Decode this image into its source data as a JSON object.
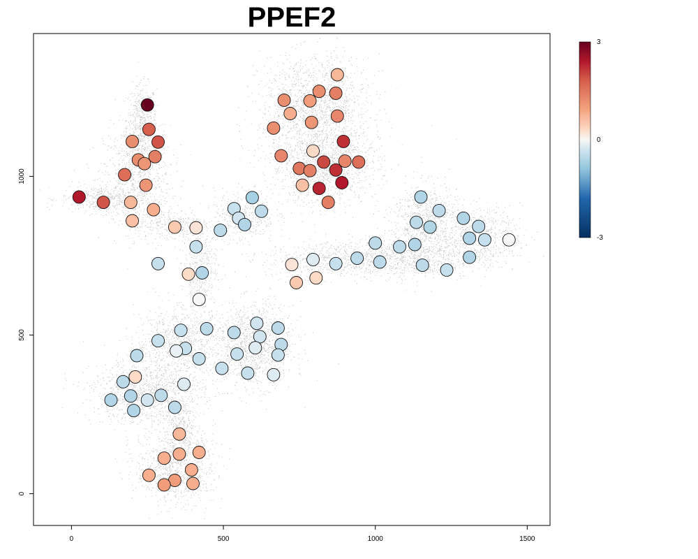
{
  "chart_data": {
    "type": "scatter",
    "title": "PPEF2",
    "xlabel": "",
    "ylabel": "",
    "xlim": [
      -125,
      1575
    ],
    "ylim": [
      -100,
      1450
    ],
    "xticks": [
      0,
      500,
      1000,
      1500
    ],
    "yticks": [
      0,
      500,
      1000
    ],
    "grid": false,
    "colorbar": {
      "min": -3,
      "max": 3,
      "ticks": [
        3,
        0,
        -3
      ],
      "low_color": "#053061",
      "mid_color": "#f7f7f7",
      "high_color": "#67001f"
    },
    "background_points_color": "#c8c8c8",
    "series": [
      {
        "points": [
          {
            "x": 250,
            "y": 1225,
            "value": 3.0
          },
          {
            "x": 25,
            "y": 935,
            "value": 2.4
          },
          {
            "x": 105,
            "y": 918,
            "value": 1.9
          },
          {
            "x": 255,
            "y": 1148,
            "value": 1.8
          },
          {
            "x": 285,
            "y": 1108,
            "value": 1.9
          },
          {
            "x": 200,
            "y": 1110,
            "value": 1.2
          },
          {
            "x": 275,
            "y": 1062,
            "value": 1.4
          },
          {
            "x": 220,
            "y": 1052,
            "value": 1.2
          },
          {
            "x": 240,
            "y": 1040,
            "value": 1.1
          },
          {
            "x": 175,
            "y": 1005,
            "value": 1.6
          },
          {
            "x": 245,
            "y": 972,
            "value": 1.1
          },
          {
            "x": 195,
            "y": 918,
            "value": 0.7
          },
          {
            "x": 270,
            "y": 895,
            "value": 0.8
          },
          {
            "x": 200,
            "y": 860,
            "value": 0.6
          },
          {
            "x": 340,
            "y": 840,
            "value": 0.5
          },
          {
            "x": 410,
            "y": 838,
            "value": 0.2
          },
          {
            "x": 490,
            "y": 830,
            "value": -0.5
          },
          {
            "x": 410,
            "y": 778,
            "value": -0.4
          },
          {
            "x": 285,
            "y": 725,
            "value": -0.4
          },
          {
            "x": 385,
            "y": 692,
            "value": 0.3
          },
          {
            "x": 430,
            "y": 696,
            "value": -0.6
          },
          {
            "x": 420,
            "y": 612,
            "value": 0.0
          },
          {
            "x": 595,
            "y": 933,
            "value": -0.7
          },
          {
            "x": 535,
            "y": 898,
            "value": -0.4
          },
          {
            "x": 550,
            "y": 868,
            "value": -0.3
          },
          {
            "x": 570,
            "y": 848,
            "value": -0.6
          },
          {
            "x": 625,
            "y": 890,
            "value": -0.5
          },
          {
            "x": 875,
            "y": 1320,
            "value": 0.7
          },
          {
            "x": 700,
            "y": 1240,
            "value": 1.2
          },
          {
            "x": 815,
            "y": 1268,
            "value": 1.2
          },
          {
            "x": 870,
            "y": 1262,
            "value": 1.4
          },
          {
            "x": 720,
            "y": 1198,
            "value": 0.8
          },
          {
            "x": 785,
            "y": 1238,
            "value": 1.0
          },
          {
            "x": 875,
            "y": 1190,
            "value": 1.3
          },
          {
            "x": 665,
            "y": 1152,
            "value": 1.2
          },
          {
            "x": 790,
            "y": 1170,
            "value": 1.1
          },
          {
            "x": 895,
            "y": 1110,
            "value": 2.2
          },
          {
            "x": 690,
            "y": 1065,
            "value": 1.3
          },
          {
            "x": 795,
            "y": 1080,
            "value": 0.3
          },
          {
            "x": 830,
            "y": 1045,
            "value": 2.0
          },
          {
            "x": 900,
            "y": 1048,
            "value": 1.3
          },
          {
            "x": 945,
            "y": 1045,
            "value": 1.6
          },
          {
            "x": 750,
            "y": 1025,
            "value": 1.5
          },
          {
            "x": 785,
            "y": 1018,
            "value": 1.4
          },
          {
            "x": 870,
            "y": 1020,
            "value": 2.2
          },
          {
            "x": 760,
            "y": 972,
            "value": 0.6
          },
          {
            "x": 815,
            "y": 962,
            "value": 2.3
          },
          {
            "x": 890,
            "y": 980,
            "value": 2.4
          },
          {
            "x": 845,
            "y": 918,
            "value": 1.4
          },
          {
            "x": 1150,
            "y": 935,
            "value": -0.6
          },
          {
            "x": 1210,
            "y": 892,
            "value": -0.5
          },
          {
            "x": 1135,
            "y": 855,
            "value": -0.5
          },
          {
            "x": 1180,
            "y": 840,
            "value": -0.6
          },
          {
            "x": 1290,
            "y": 868,
            "value": -0.6
          },
          {
            "x": 1340,
            "y": 842,
            "value": -0.5
          },
          {
            "x": 1310,
            "y": 805,
            "value": -0.6
          },
          {
            "x": 1360,
            "y": 800,
            "value": -0.4
          },
          {
            "x": 1440,
            "y": 800,
            "value": 0.0
          },
          {
            "x": 1000,
            "y": 790,
            "value": -0.5
          },
          {
            "x": 1080,
            "y": 778,
            "value": -0.5
          },
          {
            "x": 1130,
            "y": 785,
            "value": -0.6
          },
          {
            "x": 1310,
            "y": 745,
            "value": -0.6
          },
          {
            "x": 1155,
            "y": 720,
            "value": -0.5
          },
          {
            "x": 1235,
            "y": 705,
            "value": -0.4
          },
          {
            "x": 725,
            "y": 722,
            "value": 0.2
          },
          {
            "x": 795,
            "y": 738,
            "value": -0.2
          },
          {
            "x": 870,
            "y": 725,
            "value": -0.4
          },
          {
            "x": 940,
            "y": 742,
            "value": -0.5
          },
          {
            "x": 1015,
            "y": 730,
            "value": -0.5
          },
          {
            "x": 740,
            "y": 665,
            "value": 0.5
          },
          {
            "x": 805,
            "y": 680,
            "value": 0.3
          },
          {
            "x": 610,
            "y": 537,
            "value": -0.3
          },
          {
            "x": 680,
            "y": 522,
            "value": -0.5
          },
          {
            "x": 535,
            "y": 508,
            "value": -0.5
          },
          {
            "x": 620,
            "y": 495,
            "value": -0.3
          },
          {
            "x": 690,
            "y": 470,
            "value": -0.5
          },
          {
            "x": 605,
            "y": 460,
            "value": -0.2
          },
          {
            "x": 545,
            "y": 440,
            "value": -0.4
          },
          {
            "x": 680,
            "y": 437,
            "value": -0.4
          },
          {
            "x": 495,
            "y": 395,
            "value": -0.4
          },
          {
            "x": 580,
            "y": 380,
            "value": -0.4
          },
          {
            "x": 665,
            "y": 375,
            "value": -0.2
          },
          {
            "x": 360,
            "y": 515,
            "value": -0.4
          },
          {
            "x": 445,
            "y": 520,
            "value": -0.5
          },
          {
            "x": 285,
            "y": 482,
            "value": -0.4
          },
          {
            "x": 375,
            "y": 458,
            "value": -0.4
          },
          {
            "x": 345,
            "y": 450,
            "value": -0.1
          },
          {
            "x": 420,
            "y": 425,
            "value": -0.4
          },
          {
            "x": 215,
            "y": 435,
            "value": -0.5
          },
          {
            "x": 210,
            "y": 368,
            "value": 0.3
          },
          {
            "x": 170,
            "y": 353,
            "value": -0.5
          },
          {
            "x": 370,
            "y": 345,
            "value": -0.2
          },
          {
            "x": 195,
            "y": 308,
            "value": -0.6
          },
          {
            "x": 250,
            "y": 295,
            "value": -0.3
          },
          {
            "x": 295,
            "y": 310,
            "value": -0.5
          },
          {
            "x": 130,
            "y": 295,
            "value": -0.6
          },
          {
            "x": 340,
            "y": 272,
            "value": -0.5
          },
          {
            "x": 205,
            "y": 262,
            "value": -0.6
          },
          {
            "x": 355,
            "y": 188,
            "value": 0.7
          },
          {
            "x": 420,
            "y": 130,
            "value": 0.8
          },
          {
            "x": 355,
            "y": 125,
            "value": 0.8
          },
          {
            "x": 305,
            "y": 112,
            "value": 0.8
          },
          {
            "x": 395,
            "y": 75,
            "value": 0.8
          },
          {
            "x": 255,
            "y": 58,
            "value": 0.8
          },
          {
            "x": 340,
            "y": 42,
            "value": 1.0
          },
          {
            "x": 305,
            "y": 28,
            "value": 1.0
          },
          {
            "x": 400,
            "y": 32,
            "value": 0.8
          }
        ]
      }
    ],
    "background_clusters": [
      {
        "x": 230,
        "y": 1180,
        "sx": 25,
        "sy": 55,
        "n": 450
      },
      {
        "x": 215,
        "y": 1010,
        "sx": 55,
        "sy": 75,
        "n": 750
      },
      {
        "x": 105,
        "y": 930,
        "sx": 70,
        "sy": 22,
        "n": 420
      },
      {
        "x": 320,
        "y": 850,
        "sx": 70,
        "sy": 28,
        "n": 320
      },
      {
        "x": 420,
        "y": 720,
        "sx": 30,
        "sy": 70,
        "n": 380
      },
      {
        "x": 570,
        "y": 880,
        "sx": 50,
        "sy": 40,
        "n": 380
      },
      {
        "x": 800,
        "y": 1230,
        "sx": 90,
        "sy": 75,
        "n": 1300
      },
      {
        "x": 830,
        "y": 1040,
        "sx": 90,
        "sy": 65,
        "n": 1300
      },
      {
        "x": 1160,
        "y": 860,
        "sx": 55,
        "sy": 60,
        "n": 700
      },
      {
        "x": 1340,
        "y": 810,
        "sx": 70,
        "sy": 45,
        "n": 650
      },
      {
        "x": 900,
        "y": 740,
        "sx": 130,
        "sy": 30,
        "n": 700
      },
      {
        "x": 1120,
        "y": 745,
        "sx": 100,
        "sy": 35,
        "n": 550
      },
      {
        "x": 600,
        "y": 470,
        "sx": 65,
        "sy": 65,
        "n": 1100
      },
      {
        "x": 360,
        "y": 480,
        "sx": 75,
        "sy": 55,
        "n": 800
      },
      {
        "x": 250,
        "y": 320,
        "sx": 90,
        "sy": 50,
        "n": 1100
      },
      {
        "x": 340,
        "y": 90,
        "sx": 65,
        "sy": 60,
        "n": 900
      },
      {
        "x": 360,
        "y": 210,
        "sx": 25,
        "sy": 40,
        "n": 200
      }
    ]
  }
}
